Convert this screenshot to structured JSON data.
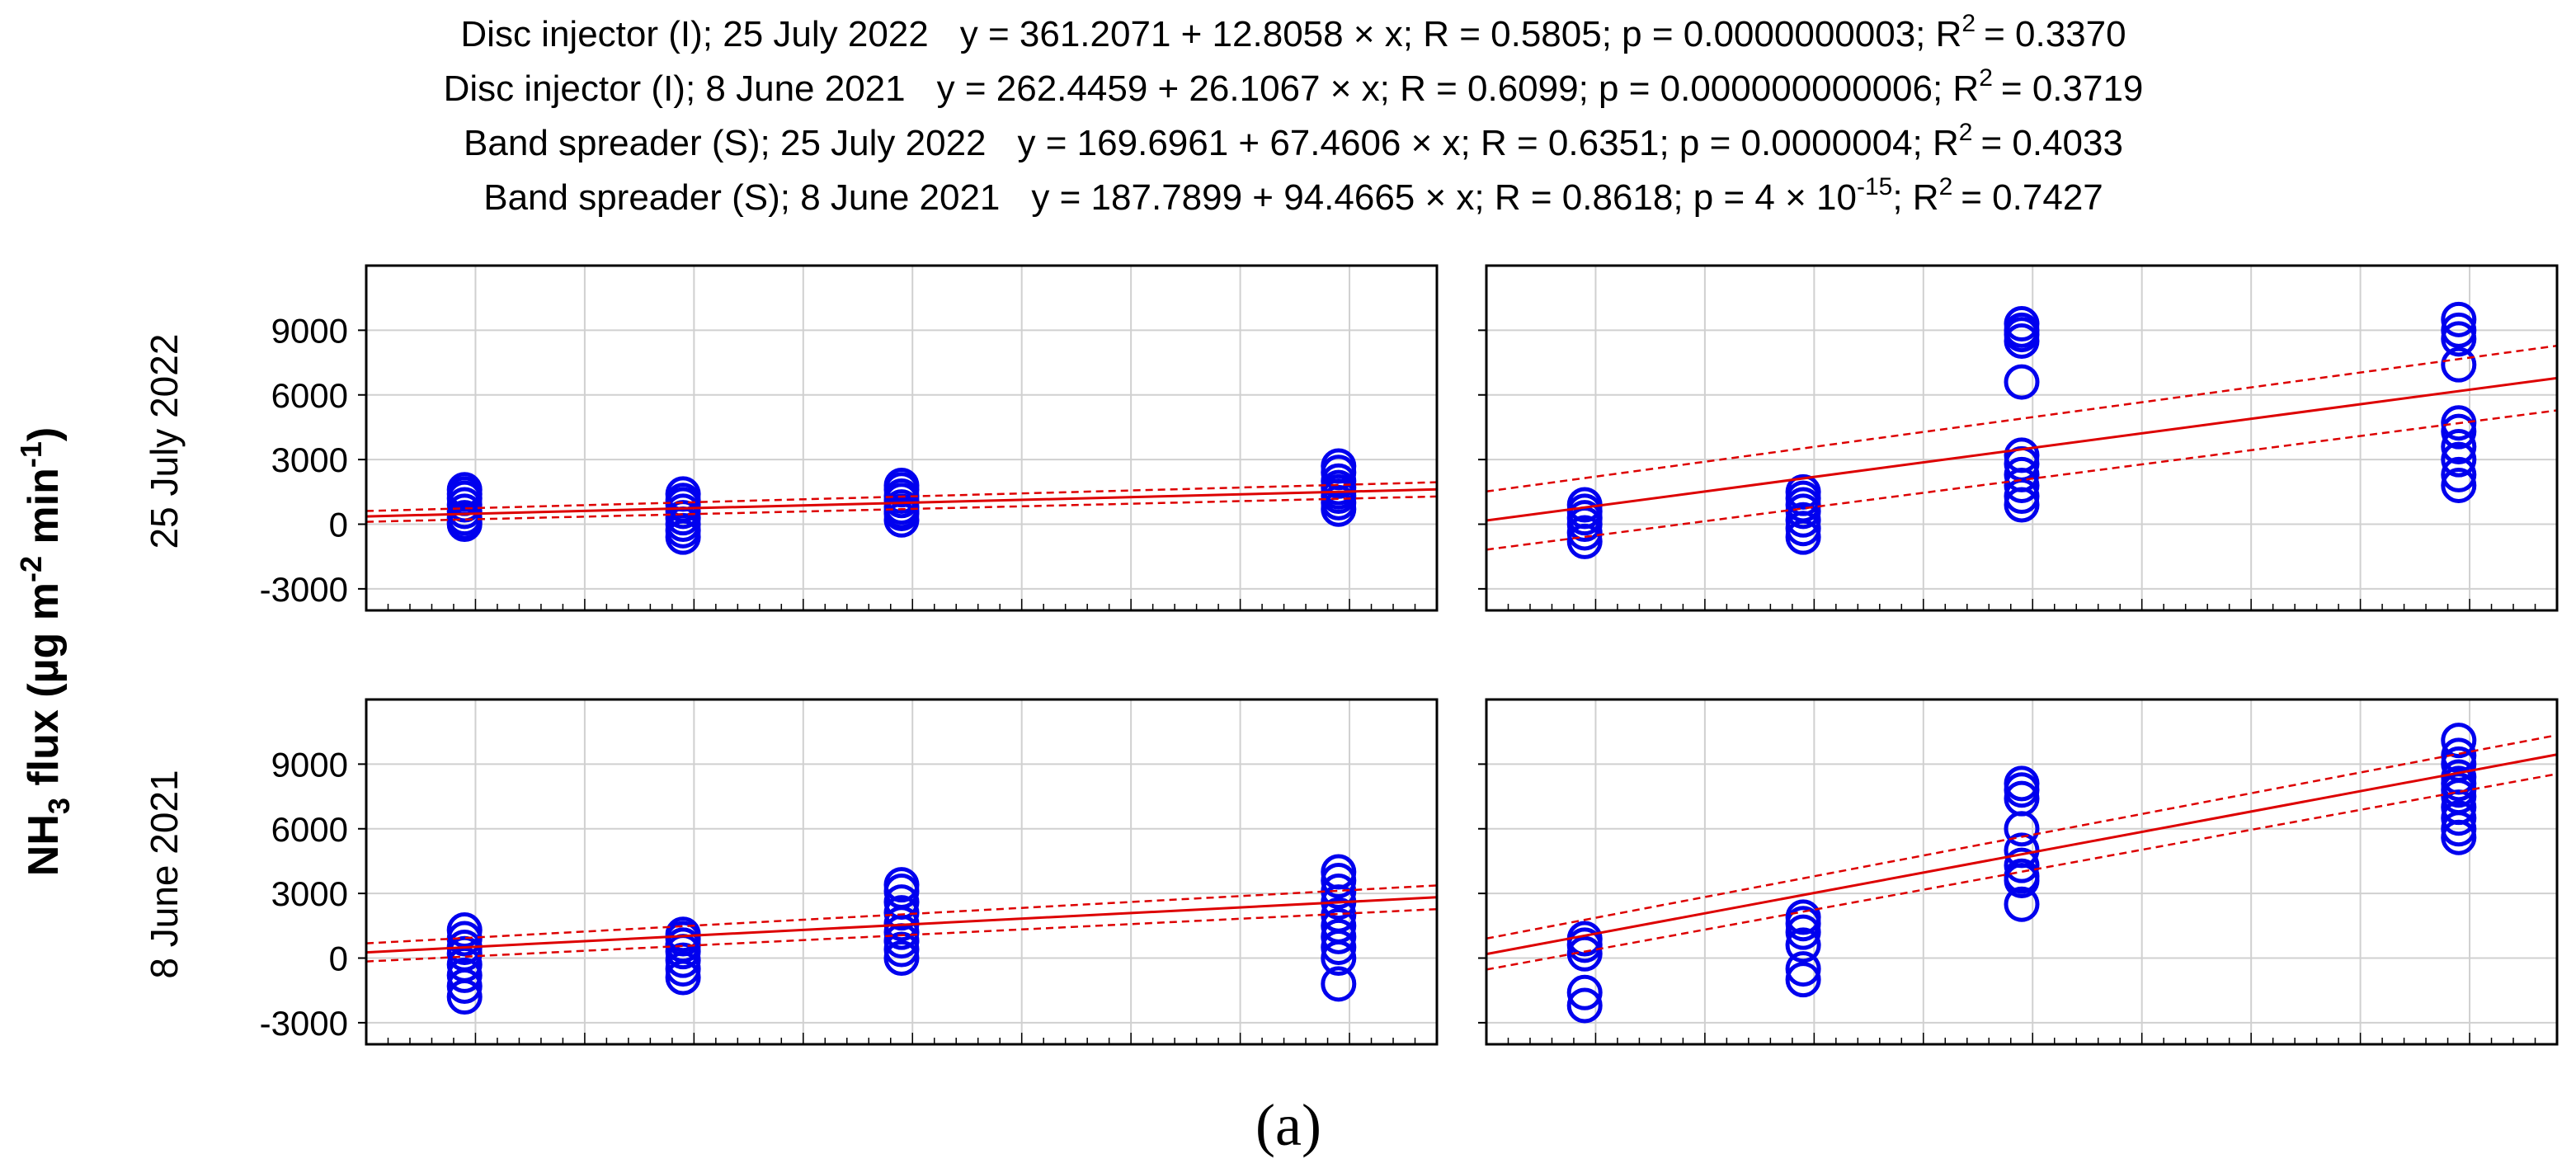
{
  "equations": [
    {
      "label": "Disc injector (I); 25 July 2022",
      "eq": "y = 361.2071 + 12.8058 × x; R = 0.5805; p = 0.0000000003; R",
      "r2": "= 0.3370"
    },
    {
      "label": "Disc injector (I); 8 June 2021",
      "eq": "y = 262.4459 + 26.1067 × x; R = 0.6099; p = 0.000000000006; R",
      "r2": "= 0.3719"
    },
    {
      "label": "Band spreader (S); 25 July 2022",
      "eq": "y = 169.6961 + 67.4606 × x; R = 0.6351; p = 0.0000004; R",
      "r2": "= 0.4033"
    },
    {
      "label": "Band spreader (S); 8 June 2021",
      "eq": "y = 187.7899 + 94.4665 × x; R = 0.8618; p = 4 × 10",
      "exp": "-15",
      "eq2": "; R",
      "r2": "= 0.7427"
    }
  ],
  "y_axis_label": {
    "main": "NH",
    "sub3": "3",
    "flux": " flux (µg m",
    "sup1": "-2",
    "min": " min",
    "sup2": "-1",
    "close": ")"
  },
  "row_labels": [
    "25 July 2022",
    "8 June 2021"
  ],
  "caption": "(a)",
  "colors": {
    "points": "#0000ee",
    "fit": "#dd0000",
    "grid": "#d0d0d0"
  },
  "chart_data": [
    {
      "type": "scatter",
      "title": "Disc injector (I); 25 July 2022",
      "row": "25 July 2022",
      "col": "Disc injector (I)",
      "xlim": [
        0,
        98
      ],
      "ylim": [
        -4000,
        12000
      ],
      "yticks": [
        -3000,
        0,
        3000,
        6000,
        9000
      ],
      "x": [
        9,
        9,
        9,
        9,
        9,
        9,
        9,
        9,
        29,
        29,
        29,
        29,
        29,
        29,
        29,
        29,
        49,
        49,
        49,
        49,
        49,
        49,
        49,
        49,
        89,
        89,
        89,
        89,
        89,
        89,
        89,
        89
      ],
      "y": [
        0,
        300,
        600,
        900,
        1200,
        1400,
        1600,
        100,
        -600,
        -300,
        0,
        300,
        600,
        900,
        1100,
        1400,
        200,
        500,
        800,
        1100,
        1300,
        1600,
        1800,
        600,
        700,
        1000,
        1300,
        1700,
        2000,
        2400,
        2700,
        1500
      ],
      "fit": {
        "intercept": 361.2071,
        "slope": 12.8058,
        "ci_halfwidth": [
          250,
          330
        ]
      }
    },
    {
      "type": "scatter",
      "title": "Band spreader (S); 25 July 2022",
      "row": "25 July 2022",
      "col": "Band spreader (S)",
      "xlim": [
        0,
        98
      ],
      "ylim": [
        -4000,
        12000
      ],
      "yticks": [
        -3000,
        0,
        3000,
        6000,
        9000
      ],
      "x": [
        9,
        9,
        9,
        9,
        9,
        9,
        29,
        29,
        29,
        29,
        29,
        29,
        29,
        49,
        49,
        49,
        49,
        49,
        49,
        49,
        49,
        49,
        49,
        49,
        89,
        89,
        89,
        89,
        89,
        89,
        89,
        89,
        89,
        89
      ],
      "y": [
        -800,
        -400,
        0,
        300,
        600,
        900,
        -600,
        -200,
        200,
        600,
        900,
        1200,
        1500,
        900,
        1300,
        1800,
        2300,
        2800,
        3200,
        6600,
        8500,
        8800,
        9000,
        9300,
        1800,
        2300,
        3000,
        3600,
        4300,
        4700,
        7400,
        8600,
        9000,
        9500
      ],
      "fit": {
        "intercept": 169.6961,
        "slope": 67.4606,
        "ci_halfwidth": [
          1350,
          1500
        ]
      }
    },
    {
      "type": "scatter",
      "title": "Disc injector (I); 8 June 2021",
      "row": "8 June 2021",
      "col": "Disc injector (I)",
      "xlim": [
        0,
        98
      ],
      "ylim": [
        -4000,
        12000
      ],
      "yticks": [
        -3000,
        0,
        3000,
        6000,
        9000
      ],
      "x": [
        9,
        9,
        9,
        9,
        9,
        9,
        9,
        9,
        29,
        29,
        29,
        29,
        29,
        29,
        29,
        29,
        49,
        49,
        49,
        49,
        49,
        49,
        49,
        49,
        49,
        89,
        89,
        89,
        89,
        89,
        89,
        89,
        89,
        89,
        89
      ],
      "y": [
        -1800,
        -1300,
        -800,
        -300,
        200,
        500,
        900,
        1300,
        -900,
        -500,
        -100,
        300,
        600,
        900,
        1100,
        600,
        0,
        400,
        800,
        1200,
        1600,
        2100,
        2600,
        3100,
        3400,
        -1200,
        0,
        500,
        1000,
        1500,
        2000,
        2600,
        3100,
        3600,
        4000
      ],
      "fit": {
        "intercept": 262.4459,
        "slope": 26.1067,
        "ci_halfwidth": [
          420,
          550
        ]
      }
    },
    {
      "type": "scatter",
      "title": "Band spreader (S); 8 June 2021",
      "row": "8 June 2021",
      "col": "Band spreader (S)",
      "xlim": [
        0,
        98
      ],
      "ylim": [
        -4000,
        12000
      ],
      "yticks": [
        -3000,
        0,
        3000,
        6000,
        9000
      ],
      "x": [
        9,
        9,
        9,
        9,
        9,
        29,
        29,
        29,
        29,
        29,
        29,
        49,
        49,
        49,
        49,
        49,
        49,
        49,
        49,
        49,
        89,
        89,
        89,
        89,
        89,
        89,
        89,
        89,
        89,
        89,
        89
      ],
      "y": [
        -2200,
        -1600,
        200,
        600,
        900,
        -1000,
        -500,
        600,
        1200,
        1600,
        1900,
        2500,
        3600,
        4300,
        5000,
        6000,
        7400,
        7800,
        8100,
        3800,
        5600,
        6000,
        6500,
        7000,
        7500,
        7800,
        8400,
        9000,
        9400,
        10100,
        8100
      ],
      "fit": {
        "intercept": 187.7899,
        "slope": 94.4665,
        "ci_halfwidth": [
          720,
          900
        ]
      }
    }
  ]
}
